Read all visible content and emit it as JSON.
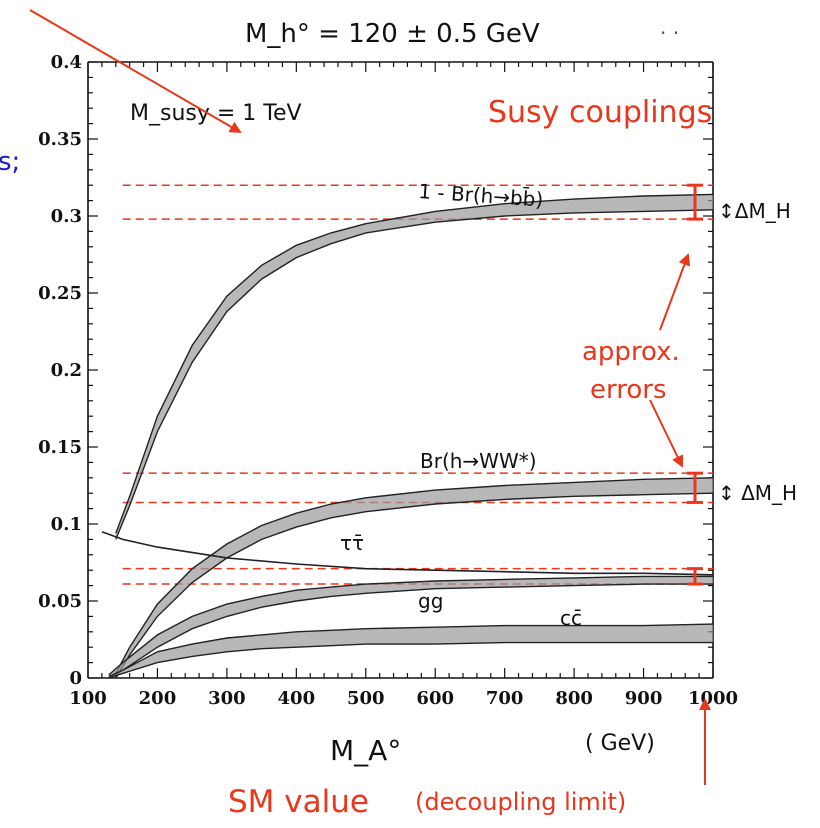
{
  "chart_data": {
    "type": "line",
    "title": "M_h° = 120 ± 0.5 GeV",
    "subtitle": "M_susy = 1 TeV",
    "xlabel": "M_A°",
    "xunit": "( GeV)",
    "ylabel": "",
    "xlim": [
      100,
      1000
    ],
    "ylim": [
      0,
      0.4
    ],
    "x_ticks": [
      "100",
      "200",
      "300",
      "400",
      "500",
      "600",
      "700",
      "800",
      "900",
      "1000"
    ],
    "y_ticks": [
      "0",
      "0.05",
      "0.1",
      "0.15",
      "0.2",
      "0.25",
      "0.3",
      "0.35",
      "0.4"
    ],
    "grid": false,
    "series": [
      {
        "name": "1 - Br(h→bb̄)",
        "style": "band",
        "x": [
          140,
          160,
          200,
          250,
          300,
          350,
          400,
          450,
          500,
          600,
          700,
          800,
          900,
          1000
        ],
        "low": [
          0.09,
          0.112,
          0.16,
          0.205,
          0.238,
          0.259,
          0.273,
          0.282,
          0.289,
          0.296,
          0.3,
          0.302,
          0.303,
          0.304
        ],
        "high": [
          0.094,
          0.118,
          0.17,
          0.216,
          0.248,
          0.268,
          0.281,
          0.289,
          0.295,
          0.303,
          0.308,
          0.311,
          0.313,
          0.314
        ]
      },
      {
        "name": "Br(h→WW*)",
        "style": "band",
        "x": [
          140,
          160,
          200,
          250,
          300,
          350,
          400,
          450,
          500,
          600,
          700,
          800,
          900,
          1000
        ],
        "low": [
          0.0,
          0.015,
          0.04,
          0.062,
          0.078,
          0.09,
          0.098,
          0.104,
          0.108,
          0.113,
          0.116,
          0.118,
          0.119,
          0.12
        ],
        "high": [
          0.003,
          0.02,
          0.048,
          0.071,
          0.087,
          0.099,
          0.107,
          0.113,
          0.117,
          0.122,
          0.125,
          0.127,
          0.129,
          0.13
        ]
      },
      {
        "name": "ττ̄",
        "style": "line",
        "x": [
          120,
          150,
          200,
          300,
          400,
          500,
          600,
          700,
          800,
          900,
          1000
        ],
        "y": [
          0.095,
          0.09,
          0.085,
          0.078,
          0.074,
          0.071,
          0.07,
          0.069,
          0.068,
          0.068,
          0.067
        ]
      },
      {
        "name": "gg",
        "style": "band",
        "x": [
          130,
          150,
          200,
          250,
          300,
          350,
          400,
          450,
          500,
          600,
          700,
          800,
          900,
          1000
        ],
        "low": [
          0.0,
          0.005,
          0.02,
          0.032,
          0.04,
          0.046,
          0.05,
          0.053,
          0.055,
          0.058,
          0.059,
          0.06,
          0.061,
          0.061
        ],
        "high": [
          0.002,
          0.01,
          0.028,
          0.04,
          0.048,
          0.053,
          0.057,
          0.059,
          0.061,
          0.063,
          0.064,
          0.065,
          0.066,
          0.066
        ]
      },
      {
        "name": "cc̄",
        "style": "band",
        "x": [
          130,
          150,
          200,
          250,
          300,
          350,
          400,
          450,
          500,
          600,
          700,
          800,
          900,
          1000
        ],
        "low": [
          0.0,
          0.003,
          0.01,
          0.014,
          0.017,
          0.019,
          0.02,
          0.021,
          0.022,
          0.022,
          0.023,
          0.023,
          0.023,
          0.023
        ],
        "high": [
          0.001,
          0.005,
          0.017,
          0.022,
          0.026,
          0.028,
          0.03,
          0.031,
          0.032,
          0.033,
          0.034,
          0.034,
          0.034,
          0.035
        ]
      }
    ],
    "red_dashed_lines": [
      0.32,
      0.298,
      0.133,
      0.114,
      0.071,
      0.061
    ],
    "error_bars_at_x": 1000,
    "colors": {
      "axis": "#111111",
      "annotation_red": "#e8371c",
      "annotation_blue": "#1a1acc",
      "band": "#222222",
      "band_fill": "#9a9a9a"
    }
  },
  "annotations": {
    "curve_bb": "1 - Br(h→bb̄)",
    "curve_ww": "Br(h→WW*)",
    "curve_tau": "ττ̄",
    "curve_gg": "gg",
    "curve_cc": "cc̄",
    "delta_mh_top": "↕ΔM_H",
    "delta_mh_mid": "↕ ΔM_H",
    "susy_couplings": "Susy couplings",
    "approx_errors_1": "approx.",
    "approx_errors_2": "errors",
    "sm_value": "SM value",
    "decoupling": "(decoupling limit)",
    "left_fragment": "s;",
    "dots": "· ·"
  }
}
